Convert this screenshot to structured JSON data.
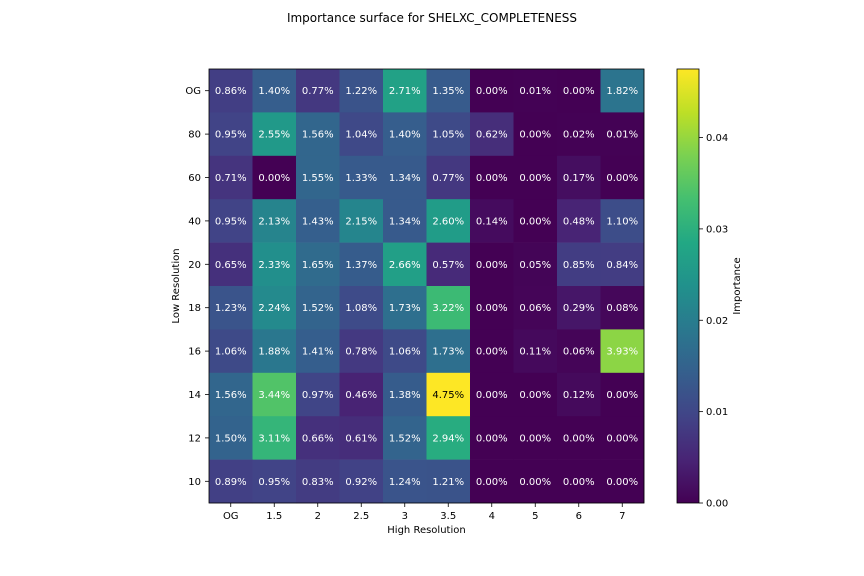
{
  "chart_data": {
    "type": "heatmap",
    "title": "Importance surface for SHELXC_COMPLETENESS",
    "xlabel": "High Resolution",
    "ylabel": "Low Resolution",
    "x_categories": [
      "OG",
      "1.5",
      "2",
      "2.5",
      "3",
      "3.5",
      "4",
      "5",
      "6",
      "7"
    ],
    "y_categories": [
      "OG",
      "80",
      "60",
      "40",
      "20",
      "18",
      "16",
      "14",
      "12",
      "10"
    ],
    "values": [
      [
        0.0086,
        0.014,
        0.0077,
        0.0122,
        0.0271,
        0.0135,
        0.0,
        0.0001,
        0.0,
        0.0182
      ],
      [
        0.0095,
        0.0255,
        0.0156,
        0.0104,
        0.014,
        0.0105,
        0.0062,
        0.0,
        0.0002,
        0.0001
      ],
      [
        0.0071,
        0.0,
        0.0155,
        0.0133,
        0.0134,
        0.0077,
        0.0,
        0.0,
        0.0017,
        0.0
      ],
      [
        0.0095,
        0.0213,
        0.0143,
        0.0215,
        0.0134,
        0.026,
        0.0014,
        0.0,
        0.0048,
        0.011
      ],
      [
        0.0065,
        0.0233,
        0.0165,
        0.0137,
        0.0266,
        0.0057,
        0.0,
        0.0005,
        0.0085,
        0.0084
      ],
      [
        0.0123,
        0.0224,
        0.0152,
        0.0108,
        0.0173,
        0.0322,
        0.0,
        0.0006,
        0.0029,
        0.0008
      ],
      [
        0.0106,
        0.0188,
        0.0141,
        0.0078,
        0.0106,
        0.0173,
        0.0,
        0.0011,
        0.0006,
        0.0393
      ],
      [
        0.0156,
        0.0344,
        0.0097,
        0.0046,
        0.0138,
        0.0475,
        0.0,
        0.0,
        0.0012,
        0.0
      ],
      [
        0.015,
        0.0311,
        0.0066,
        0.0061,
        0.0152,
        0.0294,
        0.0,
        0.0,
        0.0,
        0.0
      ],
      [
        0.0089,
        0.0095,
        0.0083,
        0.0092,
        0.0124,
        0.0121,
        0.0,
        0.0,
        0.0,
        0.0
      ]
    ],
    "cell_labels": [
      [
        "0.86%",
        "1.40%",
        "0.77%",
        "1.22%",
        "2.71%",
        "1.35%",
        "0.00%",
        "0.01%",
        "0.00%",
        "1.82%"
      ],
      [
        "0.95%",
        "2.55%",
        "1.56%",
        "1.04%",
        "1.40%",
        "1.05%",
        "0.62%",
        "0.00%",
        "0.02%",
        "0.01%"
      ],
      [
        "0.71%",
        "0.00%",
        "1.55%",
        "1.33%",
        "1.34%",
        "0.77%",
        "0.00%",
        "0.00%",
        "0.17%",
        "0.00%"
      ],
      [
        "0.95%",
        "2.13%",
        "1.43%",
        "2.15%",
        "1.34%",
        "2.60%",
        "0.14%",
        "0.00%",
        "0.48%",
        "1.10%"
      ],
      [
        "0.65%",
        "2.33%",
        "1.65%",
        "1.37%",
        "2.66%",
        "0.57%",
        "0.00%",
        "0.05%",
        "0.85%",
        "0.84%"
      ],
      [
        "1.23%",
        "2.24%",
        "1.52%",
        "1.08%",
        "1.73%",
        "3.22%",
        "0.00%",
        "0.06%",
        "0.29%",
        "0.08%"
      ],
      [
        "1.06%",
        "1.88%",
        "1.41%",
        "0.78%",
        "1.06%",
        "1.73%",
        "0.00%",
        "0.11%",
        "0.06%",
        "3.93%"
      ],
      [
        "1.56%",
        "3.44%",
        "0.97%",
        "0.46%",
        "1.38%",
        "4.75%",
        "0.00%",
        "0.00%",
        "0.12%",
        "0.00%"
      ],
      [
        "1.50%",
        "3.11%",
        "0.66%",
        "0.61%",
        "1.52%",
        "2.94%",
        "0.00%",
        "0.00%",
        "0.00%",
        "0.00%"
      ],
      [
        "0.89%",
        "0.95%",
        "0.83%",
        "0.92%",
        "1.24%",
        "1.21%",
        "0.00%",
        "0.00%",
        "0.00%",
        "0.00%"
      ]
    ],
    "colormap": "viridis",
    "vmin": 0,
    "vmax": 0.0475,
    "colorbar": {
      "label": "Importance",
      "ticks": [
        0.0,
        0.01,
        0.02,
        0.03,
        0.04
      ],
      "tick_labels": [
        "0.00",
        "0.01",
        "0.02",
        "0.03",
        "0.04"
      ]
    },
    "text_colors": {
      "on_dark": "#ffffff",
      "on_bright": "#000000"
    }
  }
}
